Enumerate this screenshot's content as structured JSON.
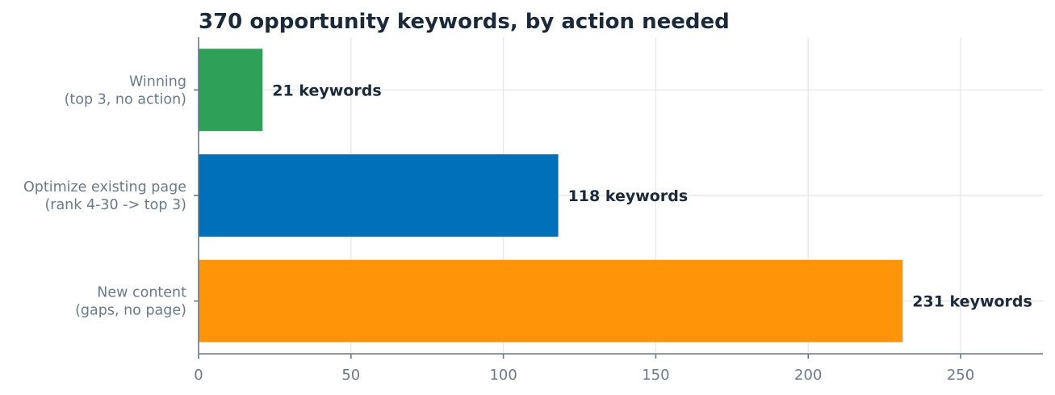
{
  "chart_data": {
    "type": "bar",
    "orientation": "horizontal",
    "title": "370 opportunity keywords, by action needed",
    "xlabel": "",
    "ylabel": "",
    "xlim": [
      0,
      277
    ],
    "xticks": [
      0,
      50,
      100,
      150,
      200,
      250
    ],
    "grid": true,
    "categories": [
      [
        "Winning",
        "(top 3, no action)"
      ],
      [
        "Optimize existing page",
        "(rank 4-30 -> top 3)"
      ],
      [
        "New content",
        "(gaps, no page)"
      ]
    ],
    "values": [
      21,
      118,
      231
    ],
    "data_labels": [
      "21 keywords",
      "118 keywords",
      "231 keywords"
    ],
    "colors": [
      "#2ea058",
      "#0070ba",
      "#ff9408"
    ]
  }
}
